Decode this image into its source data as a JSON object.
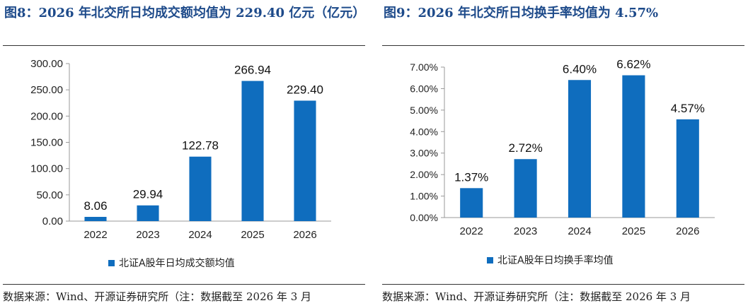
{
  "panels": [
    {
      "title": "图8：2026 年北交所日均成交额均值为 229.40 亿元（亿元）",
      "source": "数据来源：Wind、开源证券研究所（注：数据截至 2026 年 3 月",
      "chart_data": {
        "type": "bar",
        "categories": [
          "2022",
          "2023",
          "2024",
          "2025",
          "2026"
        ],
        "series": [
          {
            "name": "北证A股年日均成交额均值",
            "values": [
              8.06,
              29.94,
              122.78,
              266.94,
              229.4
            ]
          }
        ],
        "data_labels": [
          "8.06",
          "29.94",
          "122.78",
          "266.94",
          "229.40"
        ],
        "yticks": [
          "0.00",
          "50.00",
          "100.00",
          "150.00",
          "200.00",
          "250.00",
          "300.00"
        ],
        "ylim": [
          0,
          300
        ],
        "color": "#0f6dbe",
        "legend_position": "bottom",
        "grid": false
      }
    },
    {
      "title": "图9：2026 年北交所日均换手率均值为 4.57%",
      "source": "数据来源：Wind、开源证券研究所（注：数据截至 2026 年 3 月",
      "chart_data": {
        "type": "bar",
        "categories": [
          "2022",
          "2023",
          "2024",
          "2025",
          "2026"
        ],
        "series": [
          {
            "name": "北证A股年日均换手率均值",
            "values": [
              1.37,
              2.72,
              6.4,
              6.62,
              4.57
            ]
          }
        ],
        "data_labels": [
          "1.37%",
          "2.72%",
          "6.40%",
          "6.62%",
          "4.57%"
        ],
        "yticks": [
          "0.00%",
          "1.00%",
          "2.00%",
          "3.00%",
          "4.00%",
          "5.00%",
          "6.00%",
          "7.00%"
        ],
        "ylim": [
          0,
          7
        ],
        "color": "#0f6dbe",
        "legend_position": "bottom",
        "grid": false
      }
    }
  ]
}
